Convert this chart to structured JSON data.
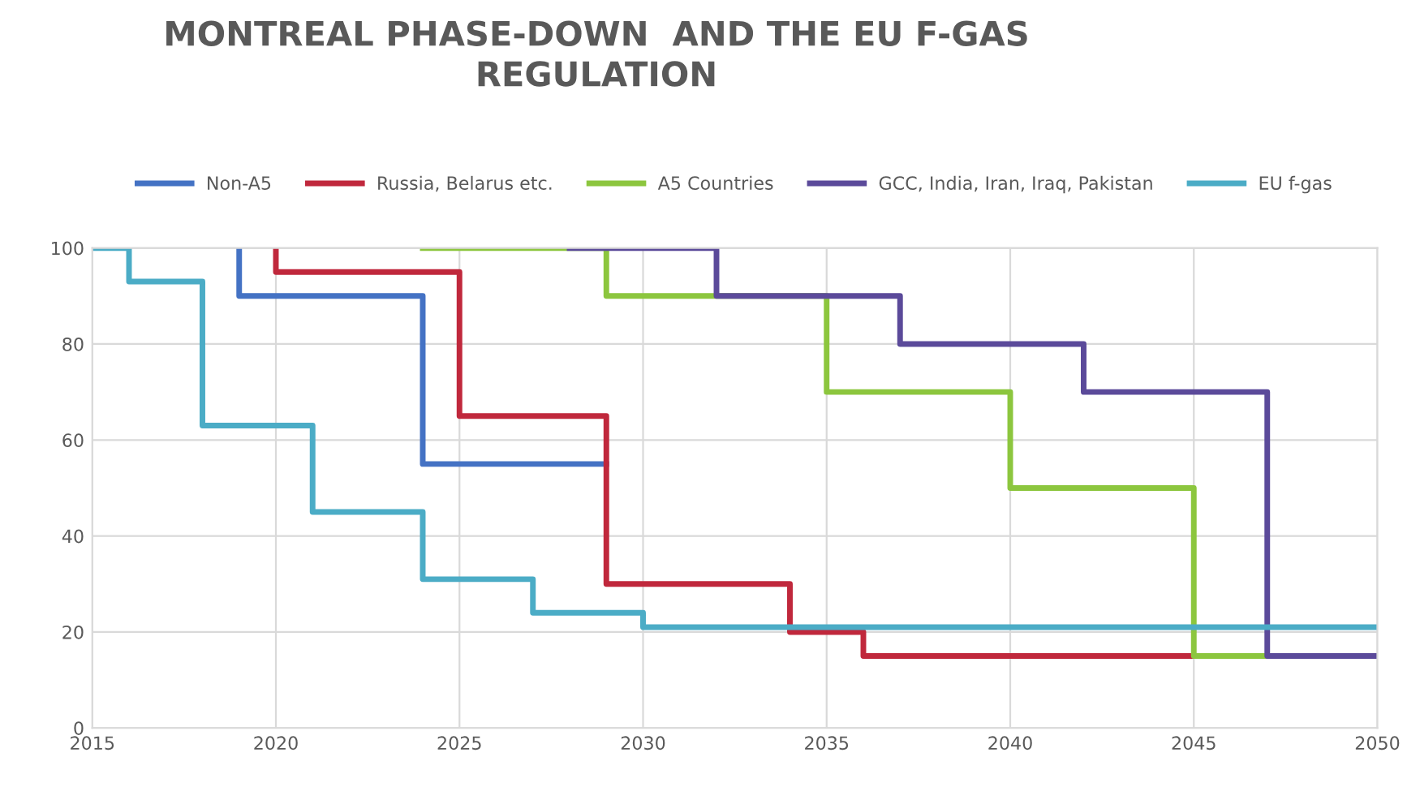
{
  "chart_data": {
    "type": "step",
    "title": "MONTREAL PHASE-DOWN  AND THE EU F-GAS\nREGULATION",
    "series": [
      {
        "name": "Non-A5",
        "color": "#4472c4",
        "x": [
          2019,
          2019,
          2024,
          2029
        ],
        "values": [
          100,
          90,
          55,
          55
        ]
      },
      {
        "name": "Russia, Belarus etc.",
        "color": "#c0283c",
        "x": [
          2020,
          2020,
          2025,
          2029,
          2034,
          2036,
          2045
        ],
        "values": [
          100,
          95,
          65,
          30,
          20,
          15,
          15
        ]
      },
      {
        "name": "A5 Countries",
        "color": "#8cc63e",
        "x": [
          2024,
          2029,
          2035,
          2040,
          2045,
          2047
        ],
        "values": [
          100,
          90,
          70,
          50,
          15,
          15
        ]
      },
      {
        "name": "GCC, India, Iran, Iraq, Pakistan",
        "color": "#5b4a9a",
        "x": [
          2028,
          2032,
          2037,
          2042,
          2047,
          2050
        ],
        "values": [
          100,
          90,
          80,
          70,
          15,
          15
        ]
      },
      {
        "name": "EU f-gas",
        "color": "#4bacc6",
        "x": [
          2015,
          2016,
          2018,
          2021,
          2024,
          2027,
          2030,
          2050
        ],
        "values": [
          100,
          93,
          63,
          45,
          31,
          24,
          21,
          21
        ]
      }
    ],
    "xlim": [
      2015,
      2050
    ],
    "xticks": [
      2015,
      2020,
      2025,
      2030,
      2035,
      2040,
      2045,
      2050
    ],
    "ylim": [
      0,
      100
    ],
    "yticks": [
      0,
      20,
      40,
      60,
      80,
      100
    ],
    "grid": true,
    "legend": "top",
    "line_style": "solid"
  }
}
